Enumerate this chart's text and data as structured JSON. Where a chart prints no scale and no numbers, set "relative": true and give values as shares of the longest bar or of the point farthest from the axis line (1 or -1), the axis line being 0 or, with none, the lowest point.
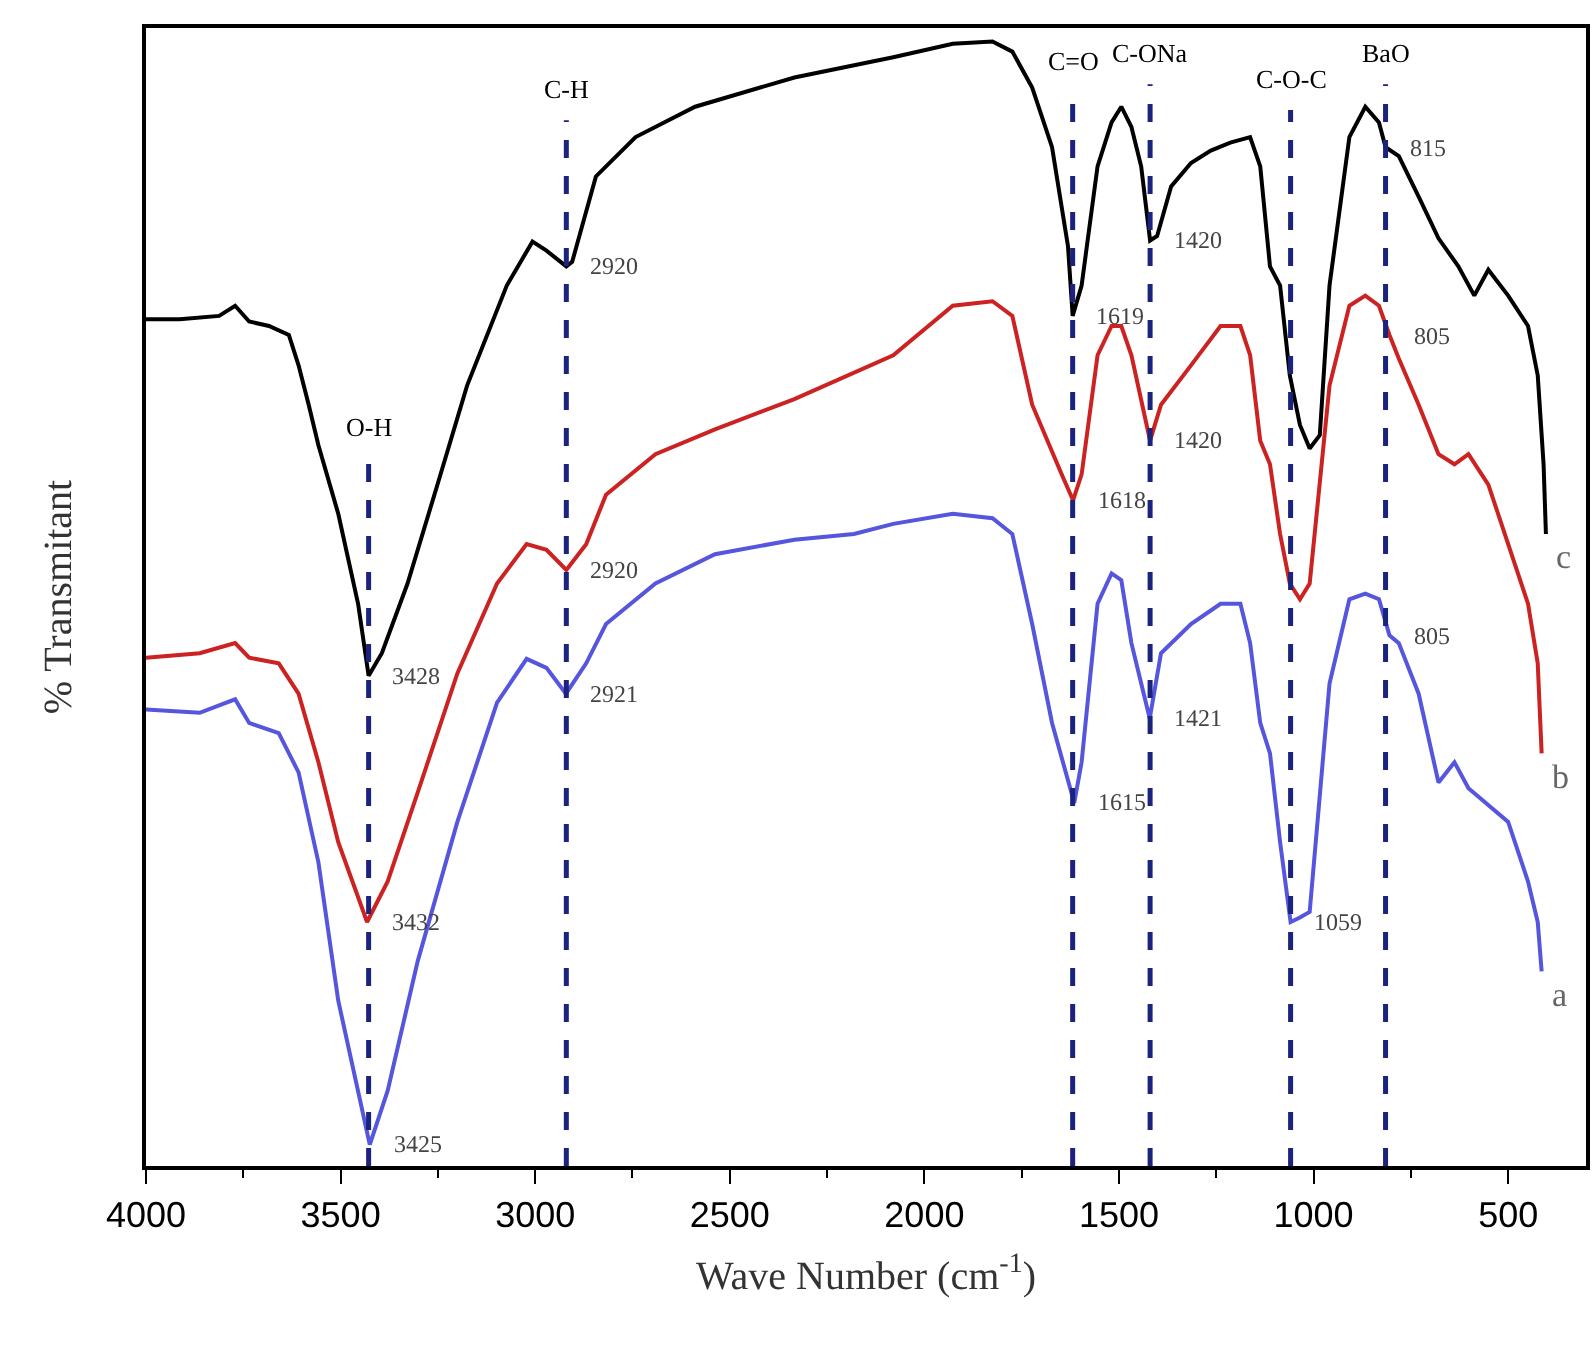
{
  "chart_data": {
    "type": "line",
    "relative": true,
    "xlabel": "Wave Number (cm$^{-1}$)",
    "ylabel": "% Transmitant",
    "xlim": [
      4000,
      300
    ],
    "xticks": [
      4000,
      3500,
      3000,
      2500,
      2000,
      1500,
      1000,
      500
    ],
    "legend": false,
    "marker": "none",
    "line_style": "solid",
    "series": [
      {
        "name": "c",
        "color": "#000000",
        "x": [
          4000,
          3913,
          3812,
          3771,
          3735,
          3684,
          3633,
          3608,
          3582,
          3557,
          3506,
          3455,
          3428,
          3394,
          3328,
          3251,
          3175,
          3073,
          3007,
          2971,
          2920,
          2905,
          2844,
          2742,
          2589,
          2334,
          2080,
          1927,
          1825,
          1774,
          1723,
          1672,
          1631,
          1619,
          1596,
          1555,
          1519,
          1494,
          1468,
          1443,
          1420,
          1402,
          1366,
          1315,
          1264,
          1214,
          1163,
          1137,
          1112,
          1086,
          1061,
          1035,
          1010,
          984,
          959,
          908,
          867,
          832,
          815,
          781,
          730,
          679,
          628,
          587,
          551,
          500,
          449,
          424,
          409,
          403
        ],
        "values": [
          0.753,
          0.753,
          0.756,
          0.765,
          0.751,
          0.747,
          0.739,
          0.712,
          0.677,
          0.641,
          0.58,
          0.5,
          0.436,
          0.456,
          0.518,
          0.606,
          0.694,
          0.783,
          0.822,
          0.814,
          0.8,
          0.804,
          0.88,
          0.915,
          0.942,
          0.968,
          0.986,
          0.998,
          1.0,
          0.991,
          0.959,
          0.906,
          0.818,
          0.756,
          0.783,
          0.889,
          0.928,
          0.942,
          0.924,
          0.889,
          0.823,
          0.827,
          0.871,
          0.892,
          0.903,
          0.91,
          0.915,
          0.889,
          0.8,
          0.783,
          0.703,
          0.659,
          0.638,
          0.65,
          0.783,
          0.915,
          0.942,
          0.928,
          0.906,
          0.898,
          0.862,
          0.825,
          0.8,
          0.774,
          0.797,
          0.774,
          0.747,
          0.703,
          0.624,
          0.562
        ]
      },
      {
        "name": "b",
        "color": "#cc2222",
        "x": [
          4000,
          3862,
          3771,
          3735,
          3659,
          3608,
          3557,
          3506,
          3432,
          3379,
          3302,
          3200,
          3098,
          3022,
          2971,
          2920,
          2869,
          2818,
          2691,
          2538,
          2334,
          2080,
          1927,
          1825,
          1774,
          1723,
          1647,
          1618,
          1596,
          1555,
          1519,
          1494,
          1468,
          1420,
          1392,
          1315,
          1239,
          1188,
          1163,
          1137,
          1112,
          1086,
          1061,
          1035,
          1010,
          959,
          908,
          867,
          832,
          805,
          781,
          730,
          679,
          638,
          602,
          551,
          449,
          424,
          414
        ],
        "values": [
          0.452,
          0.456,
          0.465,
          0.452,
          0.447,
          0.42,
          0.359,
          0.288,
          0.217,
          0.253,
          0.332,
          0.438,
          0.518,
          0.553,
          0.548,
          0.53,
          0.553,
          0.597,
          0.633,
          0.655,
          0.682,
          0.721,
          0.765,
          0.769,
          0.756,
          0.677,
          0.615,
          0.592,
          0.615,
          0.721,
          0.747,
          0.747,
          0.721,
          0.645,
          0.677,
          0.712,
          0.747,
          0.747,
          0.721,
          0.645,
          0.624,
          0.562,
          0.518,
          0.504,
          0.518,
          0.694,
          0.765,
          0.774,
          0.765,
          0.739,
          0.718,
          0.677,
          0.633,
          0.624,
          0.633,
          0.606,
          0.5,
          0.447,
          0.367
        ]
      },
      {
        "name": "a",
        "color": "#5555dd",
        "x": [
          4000,
          3862,
          3771,
          3735,
          3659,
          3608,
          3557,
          3506,
          3425,
          3379,
          3302,
          3200,
          3098,
          3022,
          2971,
          2921,
          2869,
          2818,
          2691,
          2538,
          2334,
          2181,
          2080,
          1927,
          1825,
          1774,
          1723,
          1672,
          1615,
          1596,
          1555,
          1519,
          1494,
          1468,
          1421,
          1392,
          1315,
          1239,
          1188,
          1163,
          1137,
          1112,
          1086,
          1059,
          1035,
          1010,
          959,
          908,
          867,
          832,
          805,
          781,
          730,
          679,
          638,
          602,
          500,
          449,
          424,
          414
        ],
        "values": [
          0.406,
          0.403,
          0.415,
          0.394,
          0.385,
          0.35,
          0.27,
          0.147,
          0.019,
          0.067,
          0.182,
          0.306,
          0.412,
          0.451,
          0.443,
          0.42,
          0.447,
          0.482,
          0.518,
          0.544,
          0.557,
          0.562,
          0.571,
          0.58,
          0.576,
          0.562,
          0.482,
          0.394,
          0.323,
          0.359,
          0.5,
          0.527,
          0.521,
          0.465,
          0.398,
          0.456,
          0.482,
          0.5,
          0.5,
          0.465,
          0.394,
          0.367,
          0.288,
          0.217,
          0.221,
          0.226,
          0.429,
          0.504,
          0.509,
          0.504,
          0.472,
          0.465,
          0.42,
          0.341,
          0.359,
          0.336,
          0.306,
          0.253,
          0.217,
          0.173
        ]
      }
    ],
    "ref_lines": [
      {
        "axis": "x",
        "value": 3428,
        "label": "O-H",
        "color": "#1a237e",
        "line_style": "dashed"
      },
      {
        "axis": "x",
        "value": 2920,
        "label": "C-H",
        "color": "#1a237e",
        "line_style": "dashed"
      },
      {
        "axis": "x",
        "value": 1619,
        "label": "C=O",
        "color": "#1a237e",
        "line_style": "dashed"
      },
      {
        "axis": "x",
        "value": 1420,
        "label": "C-ONa",
        "color": "#1a237e",
        "line_style": "dashed"
      },
      {
        "axis": "x",
        "value": 1059,
        "label": "C-O-C",
        "color": "#1a237e",
        "line_style": "dashed"
      },
      {
        "axis": "x",
        "value": 815,
        "label": "BaO",
        "color": "#1a237e",
        "line_style": "dashed"
      }
    ],
    "annotations": [
      {
        "text": "3428",
        "x": 3428,
        "y": 0.436
      },
      {
        "text": "2920",
        "x": 2920,
        "y": 0.8
      },
      {
        "text": "1619",
        "x": 1619,
        "y": 0.756
      },
      {
        "text": "1420",
        "x": 1420,
        "y": 0.823
      },
      {
        "text": "815",
        "x": 815,
        "y": 0.906
      },
      {
        "text": "3432",
        "x": 3432,
        "y": 0.217
      },
      {
        "text": "2920",
        "x": 2920,
        "y": 0.53
      },
      {
        "text": "1618",
        "x": 1618,
        "y": 0.592
      },
      {
        "text": "1420",
        "x": 1420,
        "y": 0.645
      },
      {
        "text": "805",
        "x": 805,
        "y": 0.739
      },
      {
        "text": "3425",
        "x": 3425,
        "y": 0.019
      },
      {
        "text": "2921",
        "x": 2921,
        "y": 0.42
      },
      {
        "text": "1615",
        "x": 1615,
        "y": 0.323
      },
      {
        "text": "1421",
        "x": 1421,
        "y": 0.398
      },
      {
        "text": "1059",
        "x": 1059,
        "y": 0.217
      },
      {
        "text": "805",
        "x": 805,
        "y": 0.472
      }
    ]
  }
}
